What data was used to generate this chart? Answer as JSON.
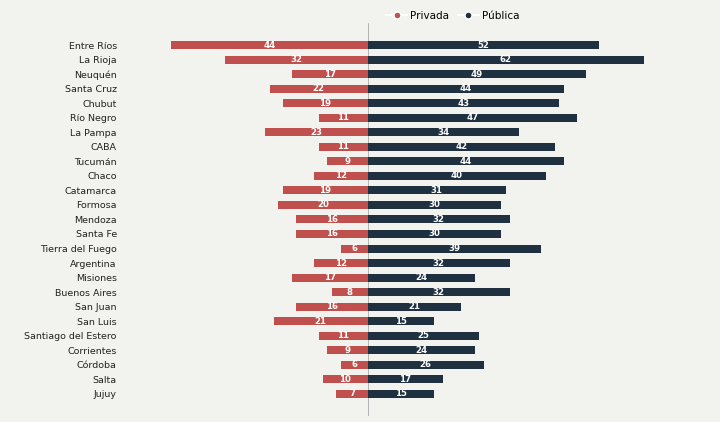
{
  "categories": [
    "Entre Ríos",
    "La Rioja",
    "Neuquén",
    "Santa Cruz",
    "Chubut",
    "Río Negro",
    "La Pampa",
    "CABA",
    "Tucumán",
    "Chaco",
    "Catamarca",
    "Formosa",
    "Mendoza",
    "Santa Fe",
    "Tierra del Fuego",
    "Argentina",
    "Misiones",
    "Buenos Aires",
    "San Juan",
    "San Luis",
    "Santiago del Estero",
    "Corrientes",
    "Córdoba",
    "Salta",
    "Jujuy"
  ],
  "privada": [
    44,
    32,
    17,
    22,
    19,
    11,
    23,
    11,
    9,
    12,
    19,
    20,
    16,
    16,
    6,
    12,
    17,
    8,
    16,
    21,
    11,
    9,
    6,
    10,
    7
  ],
  "publica": [
    52,
    62,
    49,
    44,
    43,
    47,
    34,
    42,
    44,
    40,
    31,
    30,
    32,
    30,
    39,
    32,
    24,
    32,
    21,
    15,
    25,
    24,
    26,
    17,
    15
  ],
  "color_privada": "#c0504d",
  "color_publica": "#1f3040",
  "background_color": "#f2f2ee",
  "bar_height": 0.55,
  "label_fontsize": 6.2,
  "category_fontsize": 6.8,
  "legend_fontsize": 7.5,
  "xlim_left": -55,
  "xlim_right": 75
}
